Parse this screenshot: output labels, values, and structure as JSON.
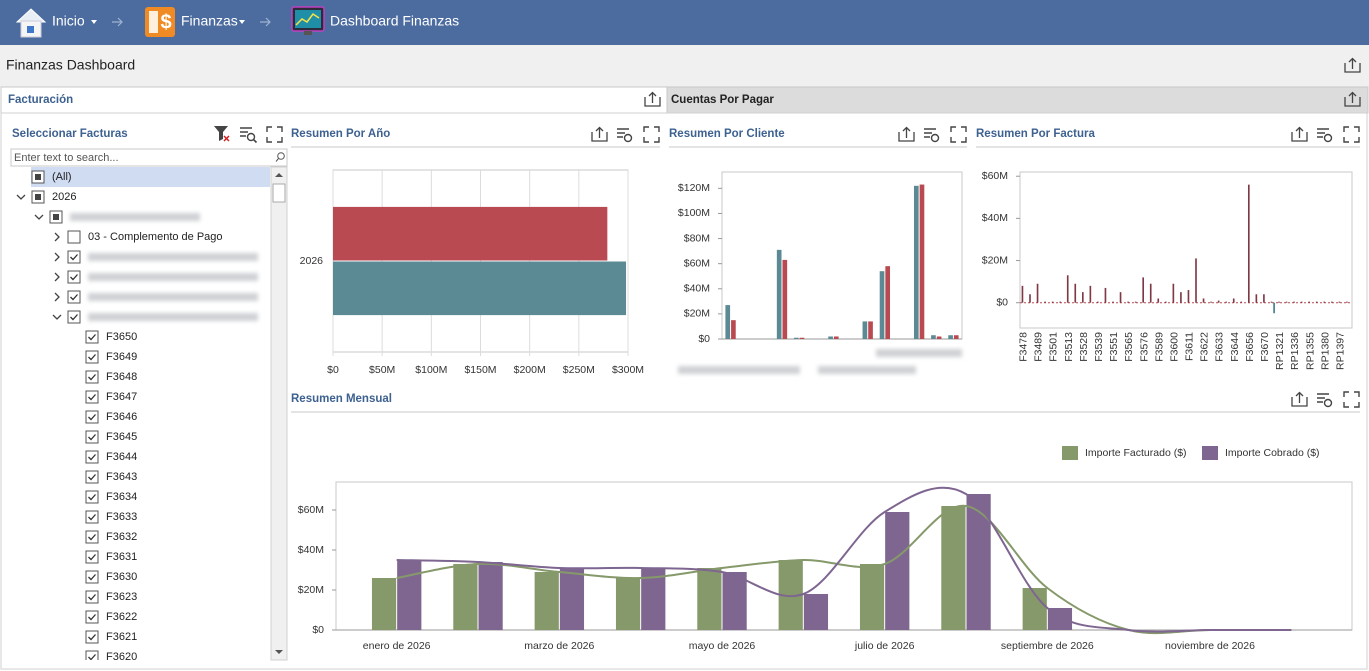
{
  "nav": {
    "items": [
      "Inicio",
      "Finanzas",
      "Dashboard Finanzas"
    ]
  },
  "page_title": "Finanzas Dashboard",
  "tabs": [
    "Facturación",
    "Cuentas Por Pagar"
  ],
  "filter": {
    "title": "Seleccionar Facturas",
    "search_placeholder": "Enter text to search...",
    "items": [
      {
        "label": "(All)",
        "level": 0,
        "state": "partial"
      },
      {
        "label": "2026",
        "level": 0,
        "state": "partial",
        "expanded": true
      },
      {
        "label": null,
        "level": 1,
        "state": "partial",
        "expanded": true
      },
      {
        "label": "03 - Complemento de Pago",
        "level": 2,
        "state": "unchecked",
        "expanded": false
      },
      {
        "label": null,
        "level": 2,
        "state": "checked",
        "expanded": false
      },
      {
        "label": null,
        "level": 2,
        "state": "checked",
        "expanded": false
      },
      {
        "label": null,
        "level": 2,
        "state": "checked",
        "expanded": false
      },
      {
        "label": null,
        "level": 2,
        "state": "checked",
        "expanded": true
      },
      {
        "label": "F3650",
        "level": 3,
        "state": "checked"
      },
      {
        "label": "F3649",
        "level": 3,
        "state": "checked"
      },
      {
        "label": "F3648",
        "level": 3,
        "state": "checked"
      },
      {
        "label": "F3647",
        "level": 3,
        "state": "checked"
      },
      {
        "label": "F3646",
        "level": 3,
        "state": "checked"
      },
      {
        "label": "F3645",
        "level": 3,
        "state": "checked"
      },
      {
        "label": "F3644",
        "level": 3,
        "state": "checked"
      },
      {
        "label": "F3643",
        "level": 3,
        "state": "checked"
      },
      {
        "label": "F3634",
        "level": 3,
        "state": "checked"
      },
      {
        "label": "F3633",
        "level": 3,
        "state": "checked"
      },
      {
        "label": "F3632",
        "level": 3,
        "state": "checked"
      },
      {
        "label": "F3631",
        "level": 3,
        "state": "checked"
      },
      {
        "label": "F3630",
        "level": 3,
        "state": "checked"
      },
      {
        "label": "F3623",
        "level": 3,
        "state": "checked"
      },
      {
        "label": "F3622",
        "level": 3,
        "state": "checked"
      },
      {
        "label": "F3621",
        "level": 3,
        "state": "checked"
      },
      {
        "label": "F3620",
        "level": 3,
        "state": "checked"
      }
    ]
  },
  "charts": [
    {
      "type": "bar",
      "orientation": "horizontal",
      "title": "Resumen Por Año",
      "categories": [
        "2026"
      ],
      "series": [
        {
          "color": "#b94a52",
          "values": [
            279000000
          ]
        },
        {
          "color": "#5b8a94",
          "values": [
            298000000
          ]
        }
      ],
      "xlim": [
        0,
        300000000
      ],
      "xticks": [
        {
          "value": 0,
          "label": "$0"
        },
        {
          "value": 50000000,
          "label": "$50M"
        },
        {
          "value": 100000000,
          "label": "$100M"
        },
        {
          "value": 150000000,
          "label": "$150M"
        },
        {
          "value": 200000000,
          "label": "$200M"
        },
        {
          "value": 250000000,
          "label": "$250M"
        },
        {
          "value": 300000000,
          "label": "$300M"
        }
      ],
      "grid": true
    },
    {
      "type": "bar",
      "orientation": "vertical",
      "title": "Resumen Por Cliente",
      "categories": [
        null,
        null,
        null,
        null,
        null,
        null,
        null,
        null,
        null,
        null,
        null,
        null,
        null,
        null
      ],
      "series": [
        {
          "color": "#5b8a94",
          "values": [
            27000000,
            0,
            0,
            71000000,
            1000000,
            0,
            2000000,
            0,
            14000000,
            54000000,
            0,
            122000000,
            3000000,
            3000000
          ]
        },
        {
          "color": "#b94a52",
          "values": [
            15000000,
            0,
            0,
            63000000,
            1000000,
            0,
            2000000,
            0,
            14000000,
            58000000,
            0,
            123000000,
            2000000,
            3000000
          ]
        }
      ],
      "ylim": [
        0,
        133000000
      ],
      "yticks": [
        {
          "value": 0,
          "label": "$0"
        },
        {
          "value": 20000000,
          "label": "$20M"
        },
        {
          "value": 40000000,
          "label": "$40M"
        },
        {
          "value": 60000000,
          "label": "$60M"
        },
        {
          "value": 80000000,
          "label": "$80M"
        },
        {
          "value": 100000000,
          "label": "$100M"
        },
        {
          "value": 120000000,
          "label": "$120M"
        }
      ],
      "grid": false
    },
    {
      "type": "bar",
      "orientation": "vertical",
      "title": "Resumen Por Factura",
      "categories": [
        "F3478",
        null,
        "F3489",
        null,
        "F3501",
        null,
        "F3513",
        null,
        "F3528",
        null,
        "F3539",
        null,
        "F3551",
        null,
        "F3565",
        null,
        "F3576",
        null,
        "F3589",
        null,
        "F3600",
        null,
        "F3611",
        null,
        "F3622",
        null,
        "F3633",
        null,
        "F3644",
        null,
        "F3656",
        null,
        "F3670",
        null,
        "RP1321",
        null,
        "RP1336",
        null,
        "RP1355",
        null,
        "RP1380",
        null,
        "RP1397",
        null
      ],
      "series": [
        {
          "color": "#7e3945",
          "values": [
            8000000,
            4000000,
            9000000,
            500000,
            500000,
            500000,
            13000000,
            9000000,
            5000000,
            8000000,
            500000,
            7000000,
            500000,
            5000000,
            500000,
            500000,
            12000000,
            9000000,
            2000000,
            500000,
            9000000,
            5000000,
            6000000,
            21000000,
            2000000,
            500000,
            1000000,
            500000,
            2000000,
            500000,
            56000000,
            4000000,
            4000000,
            500000,
            500000,
            500000,
            500000,
            500000,
            500000,
            500000,
            500000,
            500000,
            500000,
            500000
          ]
        },
        {
          "color": "#3f7f8c",
          "values": [
            0,
            0,
            0,
            0,
            0,
            0,
            0,
            0,
            0,
            0,
            0,
            0,
            0,
            0,
            0,
            0,
            0,
            0,
            0,
            0,
            0,
            0,
            0,
            0,
            0,
            0,
            0,
            0,
            0,
            0,
            0,
            0,
            0,
            -5000000,
            0,
            0,
            0,
            0,
            0,
            0,
            0,
            0,
            0,
            0
          ]
        }
      ],
      "ylim": [
        -12000000,
        62000000
      ],
      "yticks": [
        {
          "value": 0,
          "label": "$0"
        },
        {
          "value": 20000000,
          "label": "$20M"
        },
        {
          "value": 40000000,
          "label": "$40M"
        },
        {
          "value": 60000000,
          "label": "$60M"
        }
      ],
      "rotate_labels": true,
      "grid": false
    },
    {
      "type": "bar",
      "orientation": "vertical",
      "title": "Resumen Mensual",
      "categories": [
        "enero de 2026",
        null,
        "marzo de 2026",
        null,
        "mayo de 2026",
        null,
        "julio de 2026",
        null,
        "septiembre de 2026",
        null,
        "noviembre de 2026",
        null
      ],
      "series": [
        {
          "name": "Importe Facturado ($)",
          "color": "#86996a",
          "values": [
            26000000,
            33000000,
            29000000,
            26000000,
            31000000,
            35000000,
            33000000,
            62000000,
            21000000,
            0,
            0,
            0
          ]
        },
        {
          "name": "Importe Cobrado ($)",
          "color": "#7e6690",
          "values": [
            35000000,
            34000000,
            31000000,
            31000000,
            29000000,
            18000000,
            59000000,
            68000000,
            11000000,
            0,
            0,
            0
          ]
        }
      ],
      "ylim": [
        0,
        74000000
      ],
      "yticks": [
        {
          "value": 0,
          "label": "$0"
        },
        {
          "value": 20000000,
          "label": "$20M"
        },
        {
          "value": 40000000,
          "label": "$40M"
        },
        {
          "value": 60000000,
          "label": "$60M"
        }
      ],
      "smooth_lines": true,
      "legend": "top-right",
      "grid": false
    }
  ]
}
